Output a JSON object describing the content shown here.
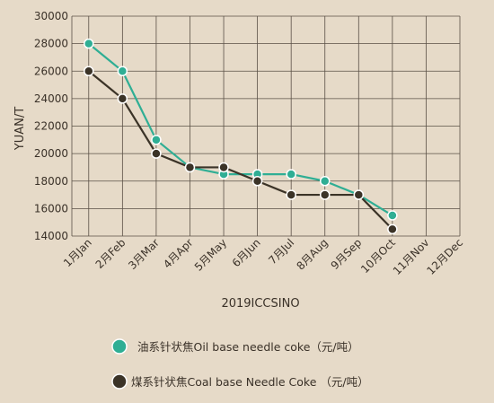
{
  "chart_data": {
    "type": "line",
    "categories": [
      "1月Jan",
      "2月Feb",
      "3月Mar",
      "4月Apr",
      "5月May",
      "6月Jun",
      "7月Jul",
      "8月Aug",
      "9月Sep",
      "10月Oct",
      "11月Nov",
      "12月Dec"
    ],
    "xlabel": "2019ICCSINO",
    "ylabel": "YUAN/T",
    "ylim": [
      14000,
      30000
    ],
    "yticks": [
      14000,
      16000,
      18000,
      20000,
      22000,
      24000,
      26000,
      28000,
      30000
    ],
    "grid": true,
    "legend_position": "bottom",
    "series": [
      {
        "name": "油系针状焦Oil base needle coke（元/吨）",
        "color": "#2fae94",
        "values": [
          28000,
          26000,
          21000,
          19000,
          18500,
          18500,
          18500,
          18000,
          17000,
          15500,
          null,
          null
        ]
      },
      {
        "name": "煤系针状焦Coal base Needle Coke （元/吨）",
        "color": "#3b3327",
        "values": [
          26000,
          24000,
          20000,
          19000,
          19000,
          18000,
          17000,
          17000,
          17000,
          14500,
          null,
          null
        ]
      }
    ]
  }
}
